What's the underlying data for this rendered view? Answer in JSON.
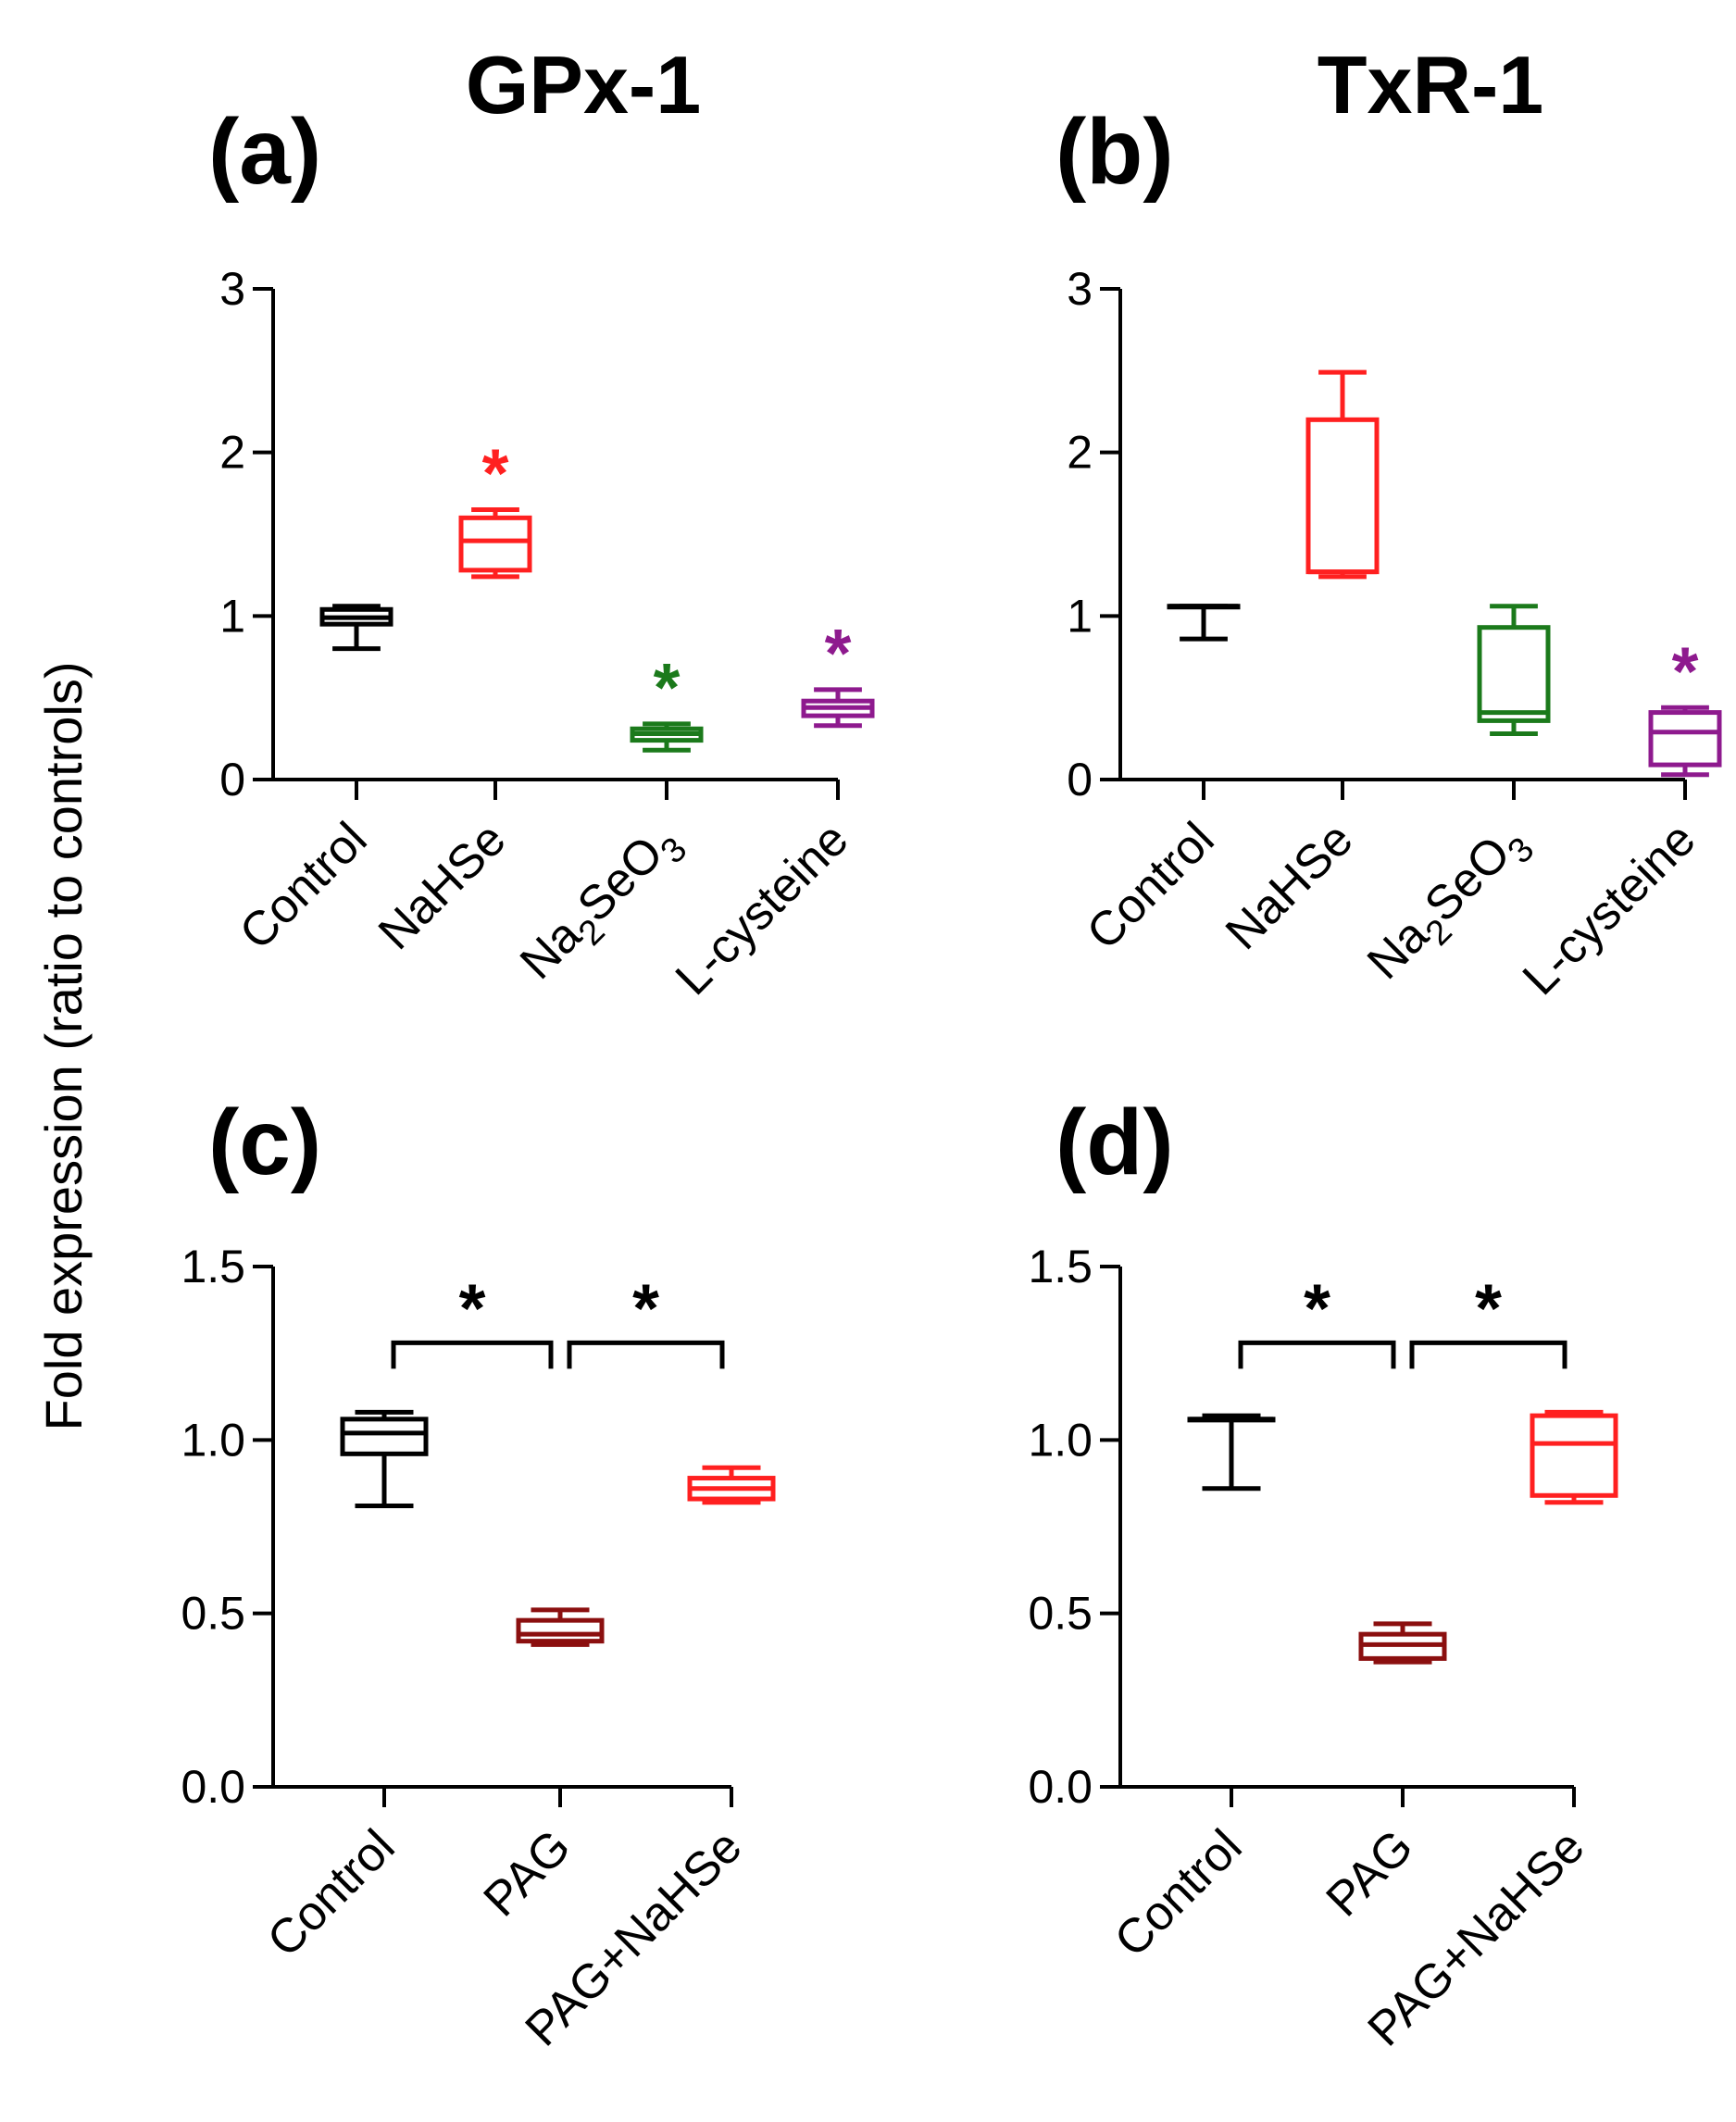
{
  "figure": {
    "column_titles": [
      "GPx-1",
      "TxR-1"
    ],
    "y_axis_title": "Fold expression (ratio to controls)"
  },
  "chart_data": [
    {
      "id": "a",
      "type": "box",
      "panel_label": "(a)",
      "title": "GPx-1",
      "ylabel": "Fold expression (ratio to controls)",
      "ylim": [
        0,
        3
      ],
      "yticks": [
        "0",
        "1",
        "2",
        "3"
      ],
      "categories": [
        {
          "label": "Control",
          "sub": ""
        },
        {
          "label": "NaHSe",
          "sub": ""
        },
        {
          "label": "Na",
          "sub": "2",
          "label_tail": "SeO",
          "sub2": "3"
        },
        {
          "label": "L-cysteine",
          "sub": ""
        }
      ],
      "series": [
        {
          "name": "Control",
          "color": "#000000",
          "min": 0.8,
          "q1": 0.95,
          "median": 0.99,
          "q3": 1.04,
          "max": 1.06,
          "significant": false
        },
        {
          "name": "NaHSe",
          "color": "#ff2020",
          "min": 1.24,
          "q1": 1.28,
          "median": 1.46,
          "q3": 1.6,
          "max": 1.65,
          "significant": true
        },
        {
          "name": "Na2SeO3",
          "color": "#1b7a1b",
          "min": 0.18,
          "q1": 0.24,
          "median": 0.28,
          "q3": 0.31,
          "max": 0.34,
          "significant": true
        },
        {
          "name": "L-cysteine",
          "color": "#8e1a8e",
          "min": 0.33,
          "q1": 0.39,
          "median": 0.44,
          "q3": 0.48,
          "max": 0.55,
          "significant": true
        }
      ],
      "brackets": [],
      "significance_symbol": "*"
    },
    {
      "id": "b",
      "type": "box",
      "panel_label": "(b)",
      "title": "TxR-1",
      "ylabel": "Fold expression (ratio to controls)",
      "ylim": [
        0,
        3
      ],
      "yticks": [
        "0",
        "1",
        "2",
        "3"
      ],
      "categories": [
        {
          "label": "Control",
          "sub": ""
        },
        {
          "label": "NaHSe",
          "sub": ""
        },
        {
          "label": "Na",
          "sub": "2",
          "label_tail": "SeO",
          "sub2": "3"
        },
        {
          "label": "L-cysteine",
          "sub": ""
        }
      ],
      "series": [
        {
          "name": "Control",
          "color": "#000000",
          "min": 0.86,
          "q1": 1.06,
          "median": 1.06,
          "q3": 1.06,
          "max": 1.06,
          "significant": false
        },
        {
          "name": "NaHSe",
          "color": "#ff2020",
          "min": 1.24,
          "q1": 1.27,
          "median": 1.27,
          "q3": 2.2,
          "max": 2.49,
          "significant": false
        },
        {
          "name": "Na2SeO3",
          "color": "#1b7a1b",
          "min": 0.28,
          "q1": 0.36,
          "median": 0.41,
          "q3": 0.93,
          "max": 1.06,
          "significant": false
        },
        {
          "name": "L-cysteine",
          "color": "#8e1a8e",
          "min": 0.03,
          "q1": 0.09,
          "median": 0.29,
          "q3": 0.41,
          "max": 0.44,
          "significant": true
        }
      ],
      "brackets": [],
      "significance_symbol": "*"
    },
    {
      "id": "c",
      "type": "box",
      "panel_label": "(c)",
      "title": "",
      "ylabel": "Fold expression (ratio to controls)",
      "ylim": [
        0,
        1.5
      ],
      "yticks": [
        "0.0",
        "0.5",
        "1.0",
        "1.5"
      ],
      "categories": [
        {
          "label": "Control",
          "sub": ""
        },
        {
          "label": "PAG",
          "sub": ""
        },
        {
          "label": "PAG+NaHSe",
          "sub": ""
        }
      ],
      "series": [
        {
          "name": "Control",
          "color": "#000000",
          "min": 0.81,
          "q1": 0.96,
          "median": 1.02,
          "q3": 1.06,
          "max": 1.08,
          "significant": false
        },
        {
          "name": "PAG",
          "color": "#8b0f0f",
          "min": 0.41,
          "q1": 0.42,
          "median": 0.44,
          "q3": 0.48,
          "max": 0.51,
          "significant": false
        },
        {
          "name": "PAG+NaHSe",
          "color": "#ff2020",
          "min": 0.82,
          "q1": 0.83,
          "median": 0.86,
          "q3": 0.89,
          "max": 0.92,
          "significant": false
        }
      ],
      "brackets": [
        {
          "from": 0,
          "to": 1,
          "level": 1.28,
          "label": "*"
        },
        {
          "from": 1,
          "to": 2,
          "level": 1.28,
          "label": "*"
        }
      ],
      "significance_symbol": "*"
    },
    {
      "id": "d",
      "type": "box",
      "panel_label": "(d)",
      "title": "",
      "ylabel": "Fold expression (ratio to controls)",
      "ylim": [
        0,
        1.5
      ],
      "yticks": [
        "0.0",
        "0.5",
        "1.0",
        "1.5"
      ],
      "categories": [
        {
          "label": "Control",
          "sub": ""
        },
        {
          "label": "PAG",
          "sub": ""
        },
        {
          "label": "PAG+NaHSe",
          "sub": ""
        }
      ],
      "series": [
        {
          "name": "Control",
          "color": "#000000",
          "min": 0.86,
          "q1": 1.06,
          "median": 1.06,
          "q3": 1.06,
          "max": 1.07,
          "significant": false
        },
        {
          "name": "PAG",
          "color": "#8b0f0f",
          "min": 0.36,
          "q1": 0.37,
          "median": 0.41,
          "q3": 0.44,
          "max": 0.47,
          "significant": false
        },
        {
          "name": "PAG+NaHSe",
          "color": "#ff2020",
          "min": 0.82,
          "q1": 0.84,
          "median": 0.99,
          "q3": 1.07,
          "max": 1.08,
          "significant": false
        }
      ],
      "brackets": [
        {
          "from": 0,
          "to": 1,
          "level": 1.28,
          "label": "*"
        },
        {
          "from": 1,
          "to": 2,
          "level": 1.28,
          "label": "*"
        }
      ],
      "significance_symbol": "*"
    }
  ]
}
